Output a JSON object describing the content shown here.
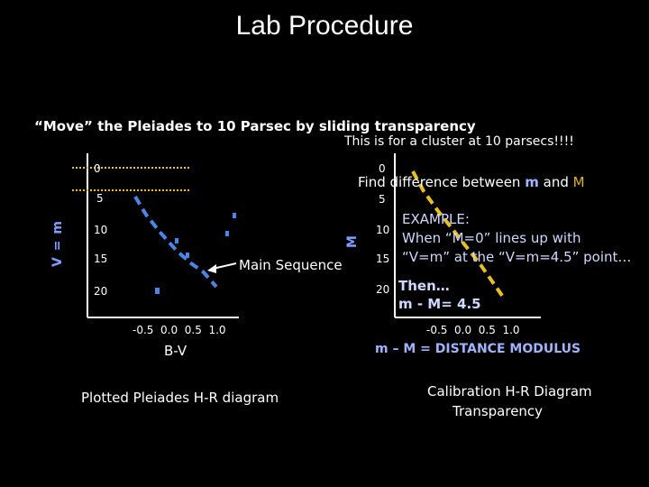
{
  "title": "Lab Procedure",
  "subtitle": "“Move” the Pleiades to 10 Parsec by sliding transparency",
  "note": "This is for a cluster at 10 parsecs!!!!",
  "left_plot": {
    "y_axis_label": "V = m",
    "y_ticks": [
      "0",
      "5",
      "10",
      "15",
      "20"
    ],
    "x_ticks": "-0.5  0.0  0.5  1.0",
    "x_axis_label": "B-V",
    "main_sequence_label": "Main Sequence",
    "caption": "Plotted Pleiades H-R diagram"
  },
  "right_plot": {
    "y_axis_label": "M",
    "y_ticks": [
      "0",
      "5",
      "10",
      "15",
      "20"
    ],
    "x_ticks": "-0.5  0.0  0.5  1.0",
    "find_prefix": "Find difference between",
    "find_m": "m",
    "find_and": "and",
    "find_M": "M",
    "example_line1": "EXAMPLE:",
    "example_line2": "When “M=0” lines up with",
    "example_line3": "“V=m” at the “V=m=4.5” point…",
    "then_line1": "Then…",
    "then_line2": "m - M= 4.5",
    "distance_modulus": "m – M = DISTANCE MODULUS",
    "caption_line1": "Calibration H-R Diagram",
    "caption_line2": "Transparency"
  },
  "colors": {
    "dash_blue": "#4a86e8",
    "dash_yellow": "#e8c020",
    "accent_blue": "#7f9fff"
  }
}
